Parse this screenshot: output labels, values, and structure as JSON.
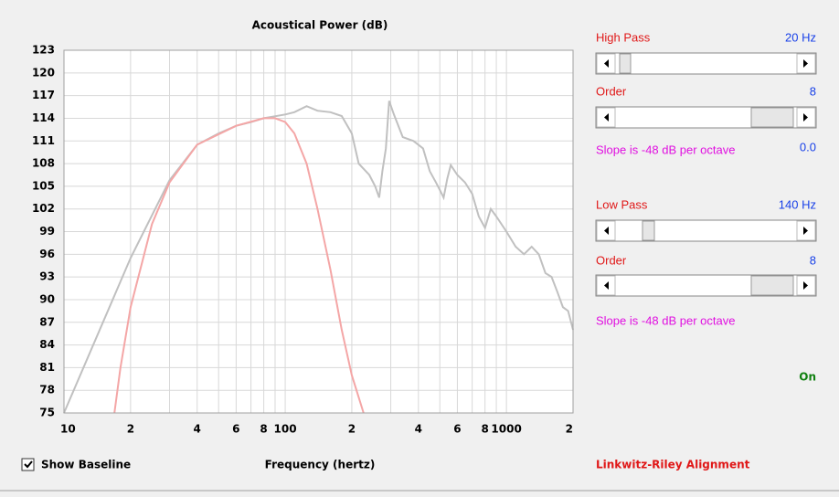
{
  "chart_data": {
    "type": "line",
    "title": "Acoustical Power (dB)",
    "x_label": "Frequency (hertz)",
    "xscale": "log",
    "xlim": [
      10,
      2000
    ],
    "ylim": [
      75,
      123
    ],
    "xticks": [
      {
        "value": 10,
        "label": "10"
      },
      {
        "value": 20,
        "label": "2"
      },
      {
        "value": 40,
        "label": "4"
      },
      {
        "value": 60,
        "label": "6"
      },
      {
        "value": 80,
        "label": "8"
      },
      {
        "value": 100,
        "label": "100"
      },
      {
        "value": 200,
        "label": "2"
      },
      {
        "value": 400,
        "label": "4"
      },
      {
        "value": 600,
        "label": "6"
      },
      {
        "value": 800,
        "label": "8"
      },
      {
        "value": 1000,
        "label": "1000"
      },
      {
        "value": 2000,
        "label": "2"
      }
    ],
    "xminorticks": [
      30,
      50,
      70,
      90,
      300,
      500,
      700,
      900
    ],
    "yticks": [
      75,
      78,
      81,
      84,
      87,
      90,
      93,
      96,
      99,
      102,
      105,
      108,
      111,
      114,
      117,
      120,
      123
    ],
    "grid": true,
    "series": [
      {
        "color": "#c0c0c0",
        "x": [
          10,
          20,
          30,
          40,
          50,
          60,
          70,
          80,
          100,
          110,
          125,
          140,
          160,
          180,
          200,
          215,
          240,
          255,
          266,
          275,
          285,
          295,
          310,
          340,
          380,
          420,
          450,
          480,
          500,
          520,
          540,
          560,
          600,
          650,
          700,
          750,
          800,
          850,
          900,
          1000,
          1100,
          1200,
          1300,
          1400,
          1500,
          1600,
          1700,
          1800,
          1900,
          2000
        ],
        "values": [
          75,
          95.5,
          105.8,
          110.5,
          112,
          113,
          113.5,
          114,
          114.5,
          114.8,
          115.6,
          115,
          114.8,
          114.3,
          112,
          108,
          106.5,
          105,
          103.5,
          107,
          110,
          116.3,
          114.5,
          111.5,
          111,
          110,
          107,
          105.5,
          104.5,
          103.5,
          106,
          107.8,
          106.5,
          105.5,
          104,
          101,
          99.5,
          102,
          101,
          99,
          97,
          96,
          97,
          96,
          93.5,
          93,
          91,
          89,
          88.5,
          86
        ]
      },
      {
        "color": "#f4a6a6",
        "x": [
          16.9,
          18,
          20,
          25,
          30,
          40,
          60,
          80,
          90,
          100,
          110,
          125,
          140,
          160,
          180,
          200,
          226
        ],
        "values": [
          75,
          81,
          89,
          100,
          105.5,
          110.5,
          113,
          114,
          114,
          113.5,
          112,
          108,
          102,
          94,
          86,
          80,
          75
        ]
      }
    ]
  },
  "controls": {
    "high_pass": {
      "label": "High Pass",
      "value": "20 Hz",
      "order_label": "Order",
      "order": "8",
      "slope": "Slope is -48 dB per octave",
      "readout": "0.0"
    },
    "low_pass": {
      "label": "Low Pass",
      "value": "140 Hz",
      "order_label": "Order",
      "order": "8",
      "slope": "Slope is -48 dB per octave"
    },
    "status": "On",
    "show_baseline": "Show Baseline",
    "alignment": "Linkwitz-Riley Alignment"
  }
}
